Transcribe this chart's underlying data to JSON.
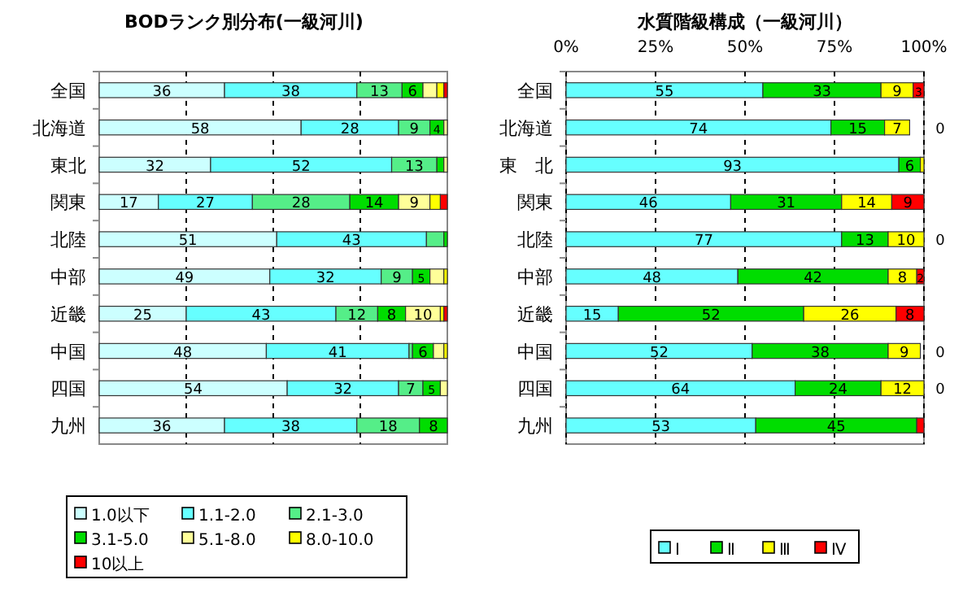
{
  "chart_data": [
    {
      "type": "bar",
      "orientation": "horizontal",
      "stacked": true,
      "title": "BODランク別分布(一級河川)",
      "categories": [
        "全国",
        "北海道",
        "東北",
        "関東",
        "北陸",
        "中部",
        "近畿",
        "中国",
        "四国",
        "九州"
      ],
      "xlim": [
        0,
        100
      ],
      "xticks": [
        {
          "value": 25,
          "label": null
        },
        {
          "value": 50,
          "label": null
        },
        {
          "value": 75,
          "label": null
        }
      ],
      "grid": "x",
      "legend": "bottom left",
      "series": [
        {
          "name": "1.0以下",
          "color": "#ccffff",
          "values": [
            36,
            58,
            32,
            17,
            51,
            49,
            25,
            48,
            54,
            36
          ],
          "value_labels": [
            "36",
            "58",
            "32",
            "17",
            "51",
            "49",
            "25",
            "48",
            "54",
            "36"
          ]
        },
        {
          "name": "1.1-2.0",
          "color": "#66ffff",
          "values": [
            38,
            28,
            52,
            27,
            43,
            32,
            43,
            41,
            32,
            38
          ],
          "value_labels": [
            "38",
            "28",
            "52",
            "27",
            "43",
            "32",
            "43",
            "41",
            "32",
            "38"
          ]
        },
        {
          "name": "2.1-3.0",
          "color": "#55ee88",
          "values": [
            13,
            9,
            13,
            28,
            5,
            9,
            12,
            1,
            7,
            18
          ],
          "value_labels": [
            "13",
            "9",
            "13",
            "28",
            null,
            "9",
            "12",
            null,
            "7",
            "18"
          ]
        },
        {
          "name": "3.1-5.0",
          "color": "#00dd00",
          "values": [
            6,
            4,
            2,
            14,
            1,
            5,
            8,
            6,
            5,
            8
          ],
          "value_labels": [
            "6",
            "4",
            null,
            "14",
            null,
            "5",
            "8",
            "6",
            "5",
            "8"
          ]
        },
        {
          "name": "5.1-8.0",
          "color": "#ffff99",
          "values": [
            4,
            1,
            1,
            9,
            0,
            4,
            10,
            3,
            2,
            0
          ],
          "value_labels": [
            null,
            null,
            null,
            "9",
            null,
            null,
            "10",
            null,
            null,
            null
          ]
        },
        {
          "name": "8.0-10.0",
          "color": "#ffff00",
          "values": [
            2,
            0,
            0,
            3,
            0,
            1,
            1,
            1,
            0,
            0
          ]
        },
        {
          "name": "10以上",
          "color": "#ff0000",
          "values": [
            1,
            0,
            0,
            2,
            0,
            0,
            1,
            0,
            0,
            0
          ]
        }
      ]
    },
    {
      "type": "bar",
      "orientation": "horizontal",
      "stacked": true,
      "title": "水質階級構成（一級河川）",
      "categories": [
        "全国",
        "北海道",
        "東　北",
        "関東",
        "北陸",
        "中部",
        "近畿",
        "中国",
        "四国",
        "九州"
      ],
      "xlim": [
        0,
        100
      ],
      "xticks": [
        {
          "value": 0,
          "label": "0%"
        },
        {
          "value": 25,
          "label": "25%"
        },
        {
          "value": 50,
          "label": "50%"
        },
        {
          "value": 75,
          "label": "75%"
        },
        {
          "value": 100,
          "label": "100%"
        }
      ],
      "grid": "x",
      "legend": "bottom",
      "series": [
        {
          "name": "Ⅰ",
          "color": "#66ffff",
          "values": [
            55,
            74,
            93,
            46,
            77,
            48,
            14.6,
            52,
            64,
            53
          ],
          "value_labels": [
            "55",
            "74",
            "93",
            "46",
            "77",
            "48",
            "15",
            "52",
            "64",
            "53"
          ]
        },
        {
          "name": "Ⅱ",
          "color": "#00dd00",
          "values": [
            33,
            15,
            6,
            31,
            13,
            42,
            51.8,
            38,
            24,
            45
          ],
          "value_labels": [
            "33",
            "15",
            "6",
            "31",
            "13",
            "42",
            "52",
            "38",
            "24",
            "45"
          ]
        },
        {
          "name": "Ⅲ",
          "color": "#ffff00",
          "values": [
            9,
            7,
            1,
            14,
            10,
            8,
            25.8,
            9,
            12,
            0
          ],
          "value_labels": [
            "9",
            "7",
            null,
            "14",
            "10",
            "8",
            "26",
            "9",
            "12",
            null
          ]
        },
        {
          "name": "Ⅳ",
          "color": "#ff0000",
          "values": [
            3,
            0,
            0,
            9,
            0,
            2,
            7.8,
            0,
            0,
            2
          ],
          "value_labels": [
            "3",
            "0",
            null,
            "9",
            "0",
            "2",
            "8",
            "0",
            "0",
            null
          ]
        }
      ]
    }
  ]
}
